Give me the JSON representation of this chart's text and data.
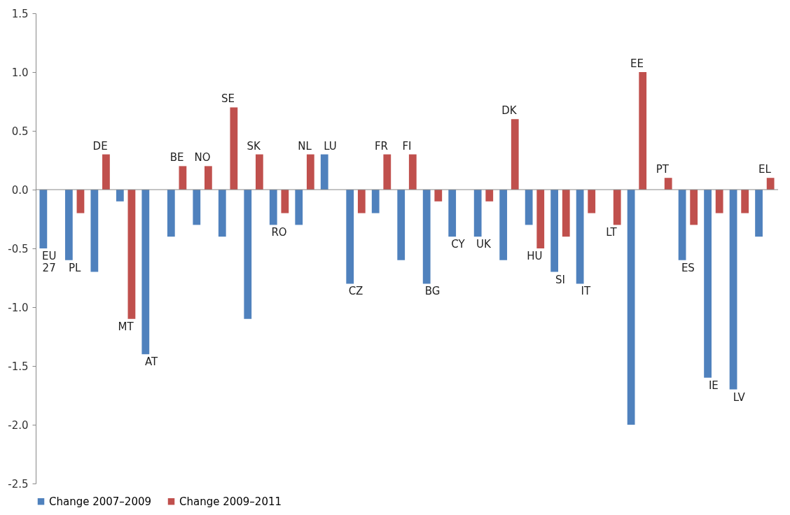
{
  "chart_data": {
    "type": "bar",
    "categories": [
      "EU 27",
      "PL",
      "DE",
      "MT",
      "AT",
      "BE",
      "NO",
      "SE",
      "SK",
      "RO",
      "NL",
      "LU",
      "CZ",
      "FR",
      "FI",
      "BG",
      "CY",
      "UK",
      "DK",
      "HU",
      "SI",
      "IT",
      "LT",
      "EE",
      "PT",
      "ES",
      "IE",
      "LV",
      "EL"
    ],
    "series": [
      {
        "name": "Change 2007–2009",
        "color": "#4f81bd",
        "values": [
          -0.5,
          -0.6,
          -0.7,
          -0.1,
          -1.4,
          -0.4,
          -0.3,
          -0.4,
          -1.1,
          -0.3,
          -0.3,
          0.3,
          -0.8,
          -0.2,
          -0.6,
          -0.8,
          -0.4,
          -0.4,
          -0.6,
          -0.3,
          -0.7,
          -0.8,
          null,
          -2.0,
          null,
          -0.6,
          -1.6,
          -1.7,
          -0.4
        ]
      },
      {
        "name": "Change 2009–2011",
        "color": "#c0504d",
        "values": [
          null,
          -0.2,
          0.3,
          -1.1,
          null,
          0.2,
          0.2,
          0.7,
          0.3,
          -0.2,
          0.3,
          null,
          -0.2,
          0.3,
          0.3,
          -0.1,
          null,
          -0.1,
          0.6,
          -0.5,
          -0.4,
          -0.2,
          -0.3,
          1.0,
          0.1,
          -0.3,
          -0.2,
          -0.2,
          0.1
        ]
      }
    ],
    "ylim": [
      -2.5,
      1.5
    ],
    "yticks": [
      {
        "value": -2.5,
        "label": "-2.5"
      },
      {
        "value": -2,
        "label": "-2.0"
      },
      {
        "value": -1.5,
        "label": "-1.5"
      },
      {
        "value": -1,
        "label": "-1.0"
      },
      {
        "value": -0.5,
        "label": "-0.5"
      },
      {
        "value": 0,
        "label": "0.0"
      },
      {
        "value": 0.5,
        "label": "0.5"
      },
      {
        "value": 1,
        "label": "1.0"
      },
      {
        "value": 1.5,
        "label": "1.5"
      }
    ],
    "legend": "bottom"
  }
}
